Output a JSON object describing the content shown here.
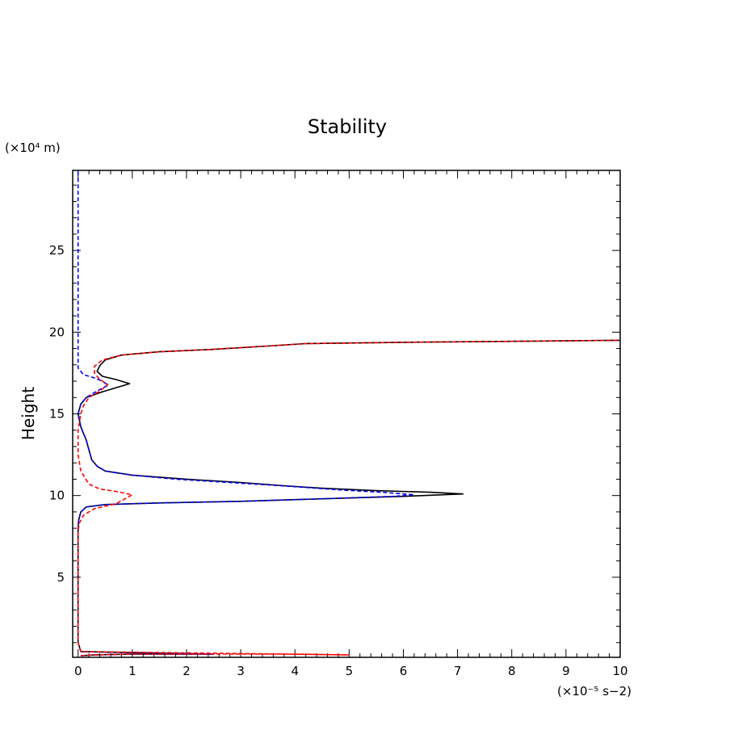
{
  "chart_data": {
    "type": "line",
    "title": "Stability",
    "xlabel": "",
    "ylabel": "Height",
    "x_unit_label": "(×10⁻⁵ s−2)",
    "y_unit_label": "(×10⁴ m)",
    "xlim": [
      -0.1,
      10
    ],
    "ylim": [
      0.1,
      29.9
    ],
    "xticks": [
      0,
      1,
      2,
      3,
      4,
      5,
      6,
      7,
      8,
      9,
      10
    ],
    "xtick_labels": [
      "0",
      "1",
      "2",
      "3",
      "4",
      "5",
      "6",
      "7",
      "8",
      "9",
      "10"
    ],
    "yticks": [
      5,
      10,
      15,
      20,
      25
    ],
    "ytick_labels": [
      "5",
      "10",
      "15",
      "20",
      "25"
    ],
    "grid": false,
    "legend": "none",
    "series": [
      {
        "color": "#000000",
        "style": "solid",
        "points": [
          [
            0.05,
            0.2
          ],
          [
            0.3,
            0.25
          ],
          [
            1.0,
            0.3
          ],
          [
            2.5,
            0.3
          ],
          [
            0.05,
            0.45
          ],
          [
            0.0,
            1.0
          ],
          [
            0.0,
            5.0
          ],
          [
            0.0,
            8.0
          ],
          [
            0.01,
            8.5
          ],
          [
            0.05,
            9.0
          ],
          [
            0.15,
            9.3
          ],
          [
            0.5,
            9.45
          ],
          [
            1.5,
            9.55
          ],
          [
            3.0,
            9.65
          ],
          [
            4.5,
            9.8
          ],
          [
            6.0,
            9.95
          ],
          [
            7.1,
            10.1
          ],
          [
            6.5,
            10.2
          ],
          [
            5.5,
            10.3
          ],
          [
            4.5,
            10.45
          ],
          [
            3.8,
            10.6
          ],
          [
            3.0,
            10.8
          ],
          [
            2.0,
            11.0
          ],
          [
            1.0,
            11.25
          ],
          [
            0.5,
            11.5
          ],
          [
            0.35,
            11.8
          ],
          [
            0.25,
            12.2
          ],
          [
            0.2,
            12.8
          ],
          [
            0.15,
            13.4
          ],
          [
            0.1,
            13.8
          ],
          [
            0.05,
            14.2
          ],
          [
            0.0,
            15.0
          ],
          [
            0.05,
            15.6
          ],
          [
            0.15,
            16.0
          ],
          [
            0.4,
            16.3
          ],
          [
            0.7,
            16.6
          ],
          [
            0.95,
            16.85
          ],
          [
            0.7,
            17.1
          ],
          [
            0.45,
            17.3
          ],
          [
            0.35,
            17.6
          ],
          [
            0.4,
            17.95
          ],
          [
            0.5,
            18.3
          ],
          [
            0.8,
            18.6
          ],
          [
            1.5,
            18.8
          ],
          [
            2.5,
            18.95
          ],
          [
            3.5,
            19.15
          ],
          [
            4.2,
            19.3
          ],
          [
            6.0,
            19.38
          ],
          [
            8.0,
            19.44
          ],
          [
            10.0,
            19.5
          ]
        ]
      },
      {
        "color": "#0000ff",
        "style": "dashed",
        "points": [
          [
            0.05,
            0.2
          ],
          [
            0.3,
            0.25
          ],
          [
            1.0,
            0.3
          ],
          [
            2.5,
            0.3
          ],
          [
            0.05,
            0.45
          ],
          [
            0.0,
            1.0
          ],
          [
            0.0,
            5.0
          ],
          [
            0.0,
            8.0
          ],
          [
            0.01,
            8.5
          ],
          [
            0.05,
            9.0
          ],
          [
            0.15,
            9.3
          ],
          [
            0.5,
            9.45
          ],
          [
            1.5,
            9.55
          ],
          [
            3.0,
            9.65
          ],
          [
            4.5,
            9.8
          ],
          [
            5.8,
            9.95
          ],
          [
            6.2,
            10.05
          ],
          [
            5.6,
            10.2
          ],
          [
            4.8,
            10.35
          ],
          [
            4.2,
            10.5
          ],
          [
            3.5,
            10.65
          ],
          [
            2.8,
            10.8
          ],
          [
            1.8,
            11.0
          ],
          [
            1.0,
            11.25
          ],
          [
            0.5,
            11.5
          ],
          [
            0.35,
            11.8
          ],
          [
            0.25,
            12.2
          ],
          [
            0.2,
            12.8
          ],
          [
            0.15,
            13.4
          ],
          [
            0.1,
            13.8
          ],
          [
            0.05,
            14.2
          ],
          [
            0.0,
            15.0
          ],
          [
            0.05,
            15.6
          ],
          [
            0.15,
            16.0
          ],
          [
            0.35,
            16.4
          ],
          [
            0.55,
            16.75
          ],
          [
            0.45,
            17.0
          ],
          [
            0.3,
            17.2
          ],
          [
            0.1,
            17.4
          ],
          [
            0.0,
            17.8
          ],
          [
            0.0,
            20.0
          ],
          [
            0.0,
            25.0
          ],
          [
            0.0,
            29.9
          ]
        ]
      },
      {
        "color": "#ff0000",
        "style": "dashed",
        "points": [
          [
            0.05,
            0.2
          ],
          [
            0.3,
            0.25
          ],
          [
            1.0,
            0.3
          ],
          [
            2.5,
            0.3
          ],
          [
            4.0,
            0.3
          ],
          [
            5.0,
            0.25
          ],
          [
            0.05,
            0.45
          ],
          [
            0.0,
            1.0
          ],
          [
            0.0,
            5.0
          ],
          [
            0.0,
            7.8
          ],
          [
            0.02,
            8.3
          ],
          [
            0.1,
            8.8
          ],
          [
            0.3,
            9.2
          ],
          [
            0.7,
            9.5
          ],
          [
            1.0,
            10.05
          ],
          [
            0.7,
            10.25
          ],
          [
            0.4,
            10.4
          ],
          [
            0.2,
            10.7
          ],
          [
            0.05,
            11.5
          ],
          [
            0.0,
            12.5
          ],
          [
            0.0,
            14.0
          ],
          [
            0.05,
            15.0
          ],
          [
            0.1,
            15.5
          ],
          [
            0.2,
            16.0
          ],
          [
            0.4,
            16.4
          ],
          [
            0.55,
            16.8
          ],
          [
            0.4,
            17.1
          ],
          [
            0.3,
            17.5
          ],
          [
            0.3,
            17.9
          ],
          [
            0.45,
            18.3
          ],
          [
            0.8,
            18.6
          ],
          [
            1.5,
            18.8
          ],
          [
            2.5,
            18.95
          ],
          [
            3.5,
            19.15
          ],
          [
            4.2,
            19.3
          ],
          [
            6.0,
            19.38
          ],
          [
            8.0,
            19.44
          ],
          [
            10.0,
            19.5
          ]
        ]
      }
    ]
  }
}
